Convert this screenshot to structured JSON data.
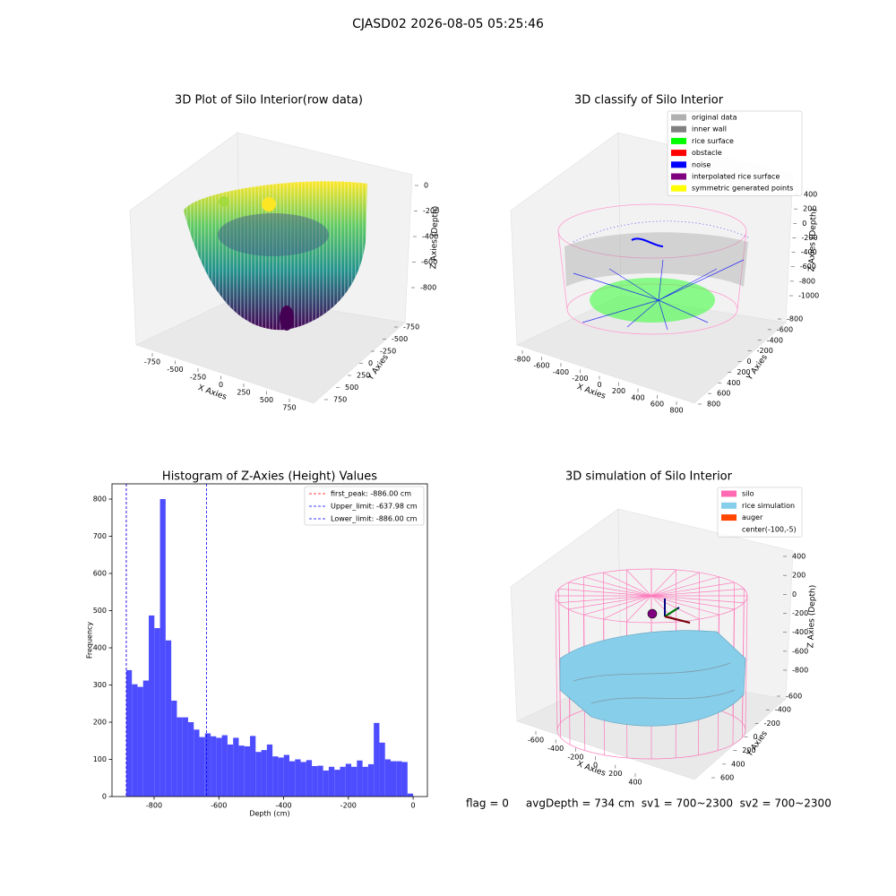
{
  "title": "CJASD02 2026-08-05 05:25:46",
  "status": "flag = 0     avgDepth = 734 cm  sv1 = 700~2300  sv2 = 700~2300",
  "chart_data": [
    {
      "type": "scatter3d",
      "title": "3D Plot of Silo Interior(row data)",
      "xlabel": "X Axies",
      "ylabel": "Y Axies",
      "zlabel": "Z Axies (Depth)",
      "xticks": [
        -750,
        -500,
        -250,
        0,
        250,
        500,
        750
      ],
      "yticks": [
        -750,
        -500,
        -250,
        0,
        250,
        500,
        750
      ],
      "zticks": [
        0,
        -200,
        -400,
        -600,
        -800
      ]
    },
    {
      "type": "scatter3d",
      "title": "3D classify of Silo Interior",
      "xlabel": "X Axies",
      "ylabel": "Y Axies",
      "zlabel": "Z Axies (Depth)",
      "xticks": [
        -800,
        -600,
        -400,
        -200,
        0,
        200,
        400,
        600,
        800
      ],
      "yticks": [
        -800,
        -600,
        -400,
        -200,
        0,
        200,
        400,
        600,
        800
      ],
      "zticks": [
        400,
        200,
        0,
        -200,
        -400,
        -600,
        -800,
        -1000
      ],
      "series": [
        {
          "name": "original data",
          "color": "#b0b0b0"
        },
        {
          "name": "inner wall",
          "color": "#808080"
        },
        {
          "name": "rice surface",
          "color": "#00ff00"
        },
        {
          "name": "obstacle",
          "color": "#ff0000"
        },
        {
          "name": "noise",
          "color": "#0000ff"
        },
        {
          "name": "interpolated rice surface",
          "color": "#800080"
        },
        {
          "name": "symmetric generated points",
          "color": "#ffff00"
        }
      ]
    },
    {
      "type": "histogram",
      "title": "Histogram of Z-Axies (Height) Values",
      "xlabel": "Depth (cm)",
      "ylabel": "Frequency",
      "color": "#4d4dff",
      "bins": [
        -886,
        -868.63,
        -851.25,
        -833.88,
        -816.51,
        -799.14,
        -781.76,
        -764.39,
        -747.02,
        -729.65,
        -712.27,
        -694.9,
        -677.53,
        -660.16,
        -642.78,
        -625.41,
        -608.04,
        -590.67,
        -573.29,
        -555.92,
        -538.55,
        -521.18,
        -503.8,
        -486.43,
        -469.06,
        -451.69,
        -434.31,
        -416.94,
        -399.57,
        -382.2,
        -364.82,
        -347.45,
        -330.08,
        -312.71,
        -295.33,
        -277.96,
        -260.59,
        -243.22,
        -225.84,
        -208.47,
        -191.1,
        -173.73,
        -156.35,
        -138.98,
        -121.61,
        -104.24,
        -86.86,
        -69.49,
        -52.12,
        -34.75,
        -17.37,
        0
      ],
      "values": [
        340,
        302,
        295,
        312,
        487,
        453,
        800,
        420,
        258,
        213,
        213,
        200,
        180,
        160,
        170,
        162,
        158,
        165,
        140,
        158,
        137,
        135,
        163,
        120,
        125,
        140,
        108,
        105,
        112,
        95,
        100,
        93,
        98,
        82,
        83,
        70,
        80,
        72,
        80,
        88,
        80,
        97,
        80,
        87,
        198,
        145,
        100,
        95,
        95,
        93,
        8
      ],
      "xlim": [
        -930,
        44
      ],
      "ylim": [
        0,
        841
      ],
      "xticks": [
        -800,
        -600,
        -400,
        -200,
        0
      ],
      "yticks": [
        0,
        100,
        200,
        300,
        400,
        500,
        600,
        700,
        800
      ],
      "lines": [
        {
          "name": "first_peak: -886.00 cm",
          "value": -886,
          "color": "#ff0000"
        },
        {
          "name": "Upper_limit: -637.98 cm",
          "value": -637.98,
          "color": "#0000ff"
        },
        {
          "name": "Lower_limit: -886.00 cm",
          "value": -886,
          "color": "#0000ff"
        }
      ]
    },
    {
      "type": "surface3d",
      "title": "3D simulation of Silo Interior",
      "xlabel": "X Axies",
      "ylabel": "Y Axies",
      "zlabel": "Z Axies (Depth)",
      "xticks": [
        -600,
        -400,
        -200,
        0,
        200,
        400
      ],
      "yticks": [
        -600,
        -400,
        -200,
        0,
        200,
        400,
        600
      ],
      "zticks": [
        400,
        200,
        0,
        -200,
        -400,
        -600,
        -800
      ],
      "series": [
        {
          "name": "silo",
          "color": "#ff69b4"
        },
        {
          "name": "rice simulation",
          "color": "#87ceeb"
        },
        {
          "name": "auger",
          "color": "#ff4500"
        },
        {
          "name": "center(-100,-5)"
        }
      ]
    }
  ]
}
